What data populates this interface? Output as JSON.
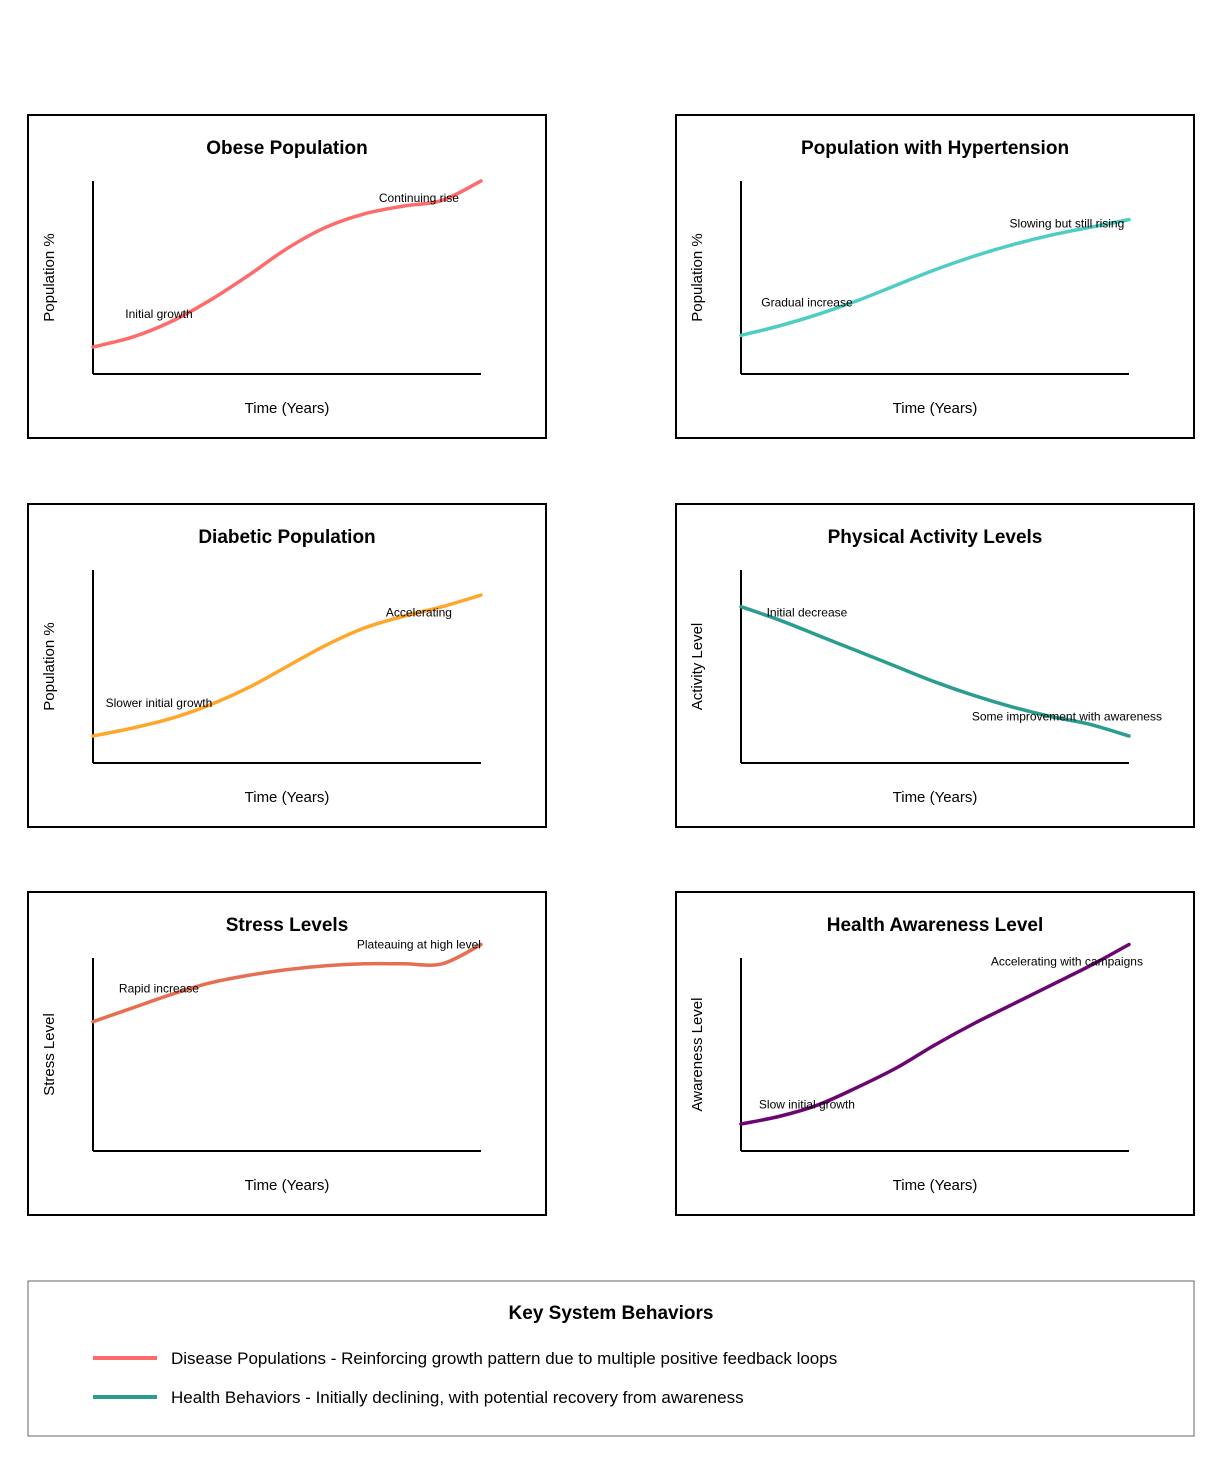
{
  "chart_data": [
    {
      "type": "line",
      "title": "Obese Population",
      "xlabel": "Time (Years)",
      "ylabel": "Population %",
      "color": "#ff6b6b",
      "series": [
        {
          "x": [
            0,
            10,
            20,
            30,
            40,
            50,
            60,
            70,
            80,
            90,
            100
          ],
          "values": [
            14,
            19,
            27,
            38,
            51,
            65,
            76,
            83,
            87,
            90,
            100
          ]
        }
      ],
      "xlim": [
        0,
        100
      ],
      "ylim": [
        0,
        100
      ],
      "annotations": [
        {
          "text": "Initial growth",
          "x": 17,
          "y": 29
        },
        {
          "text": "Continuing rise",
          "x": 84,
          "y": 89
        }
      ]
    },
    {
      "type": "line",
      "title": "Population with Hypertension",
      "xlabel": "Time (Years)",
      "ylabel": "Population %",
      "color": "#4ecdc4",
      "series": [
        {
          "x": [
            0,
            10,
            20,
            30,
            40,
            50,
            60,
            70,
            80,
            90,
            100
          ],
          "values": [
            20,
            25,
            31,
            38,
            46,
            54,
            61,
            67,
            72,
            76,
            80
          ]
        }
      ],
      "xlim": [
        0,
        100
      ],
      "ylim": [
        0,
        100
      ],
      "annotations": [
        {
          "text": "Gradual increase",
          "x": 17,
          "y": 35
        },
        {
          "text": "Slowing but still rising",
          "x": 84,
          "y": 76
        }
      ]
    },
    {
      "type": "line",
      "title": "Diabetic Population",
      "xlabel": "Time (Years)",
      "ylabel": "Population %",
      "color": "#ffa62b",
      "series": [
        {
          "x": [
            0,
            10,
            20,
            30,
            40,
            50,
            60,
            70,
            80,
            90,
            100
          ],
          "values": [
            14,
            18,
            23,
            30,
            39,
            50,
            61,
            70,
            76,
            81,
            87
          ]
        }
      ],
      "xlim": [
        0,
        100
      ],
      "ylim": [
        0,
        100
      ],
      "annotations": [
        {
          "text": "Slower initial growth",
          "x": 17,
          "y": 29
        },
        {
          "text": "Accelerating",
          "x": 84,
          "y": 76
        }
      ]
    },
    {
      "type": "line",
      "title": "Physical Activity Levels",
      "xlabel": "Time (Years)",
      "ylabel": "Activity Level",
      "color": "#2a9d8f",
      "series": [
        {
          "x": [
            0,
            10,
            20,
            30,
            40,
            50,
            60,
            70,
            80,
            90,
            100
          ],
          "values": [
            81,
            74,
            66,
            58,
            50,
            42,
            35,
            29,
            24,
            20,
            14
          ]
        }
      ],
      "xlim": [
        0,
        100
      ],
      "ylim": [
        0,
        100
      ],
      "annotations": [
        {
          "text": "Initial decrease",
          "x": 17,
          "y": 76
        },
        {
          "text": "Some improvement with awareness",
          "x": 84,
          "y": 22
        }
      ]
    },
    {
      "type": "line",
      "title": "Stress Levels",
      "xlabel": "Time (Years)",
      "ylabel": "Stress Level",
      "color": "#e76f51",
      "series": [
        {
          "x": [
            0,
            10,
            20,
            30,
            40,
            50,
            60,
            70,
            80,
            90,
            100
          ],
          "values": [
            67,
            74,
            81,
            87,
            91,
            94,
            96,
            97,
            97,
            97,
            107
          ]
        }
      ],
      "xlim": [
        0,
        100
      ],
      "ylim": [
        0,
        100
      ],
      "annotations": [
        {
          "text": "Rapid increase",
          "x": 17,
          "y": 82
        },
        {
          "text": "Plateauing at high level",
          "x": 84,
          "y": 105
        }
      ]
    },
    {
      "type": "line",
      "title": "Health Awareness Level",
      "xlabel": "Time (Years)",
      "ylabel": "Awareness Level",
      "color": "#6a0572",
      "series": [
        {
          "x": [
            0,
            10,
            20,
            30,
            40,
            50,
            60,
            70,
            80,
            90,
            100
          ],
          "values": [
            14,
            18,
            24,
            33,
            43,
            55,
            66,
            76,
            86,
            96,
            107
          ]
        }
      ],
      "xlim": [
        0,
        100
      ],
      "ylim": [
        0,
        100
      ],
      "annotations": [
        {
          "text": "Slow initial growth",
          "x": 17,
          "y": 22
        },
        {
          "text": "Accelerating with campaigns",
          "x": 84,
          "y": 96
        }
      ]
    }
  ],
  "legend": {
    "title": "Key System Behaviors",
    "items": [
      {
        "color": "#ff6b6b",
        "text": "Disease Populations - Reinforcing growth pattern due to multiple positive feedback loops"
      },
      {
        "color": "#2a9d8f",
        "text": "Health Behaviors - Initially declining, with potential recovery from awareness"
      }
    ]
  }
}
